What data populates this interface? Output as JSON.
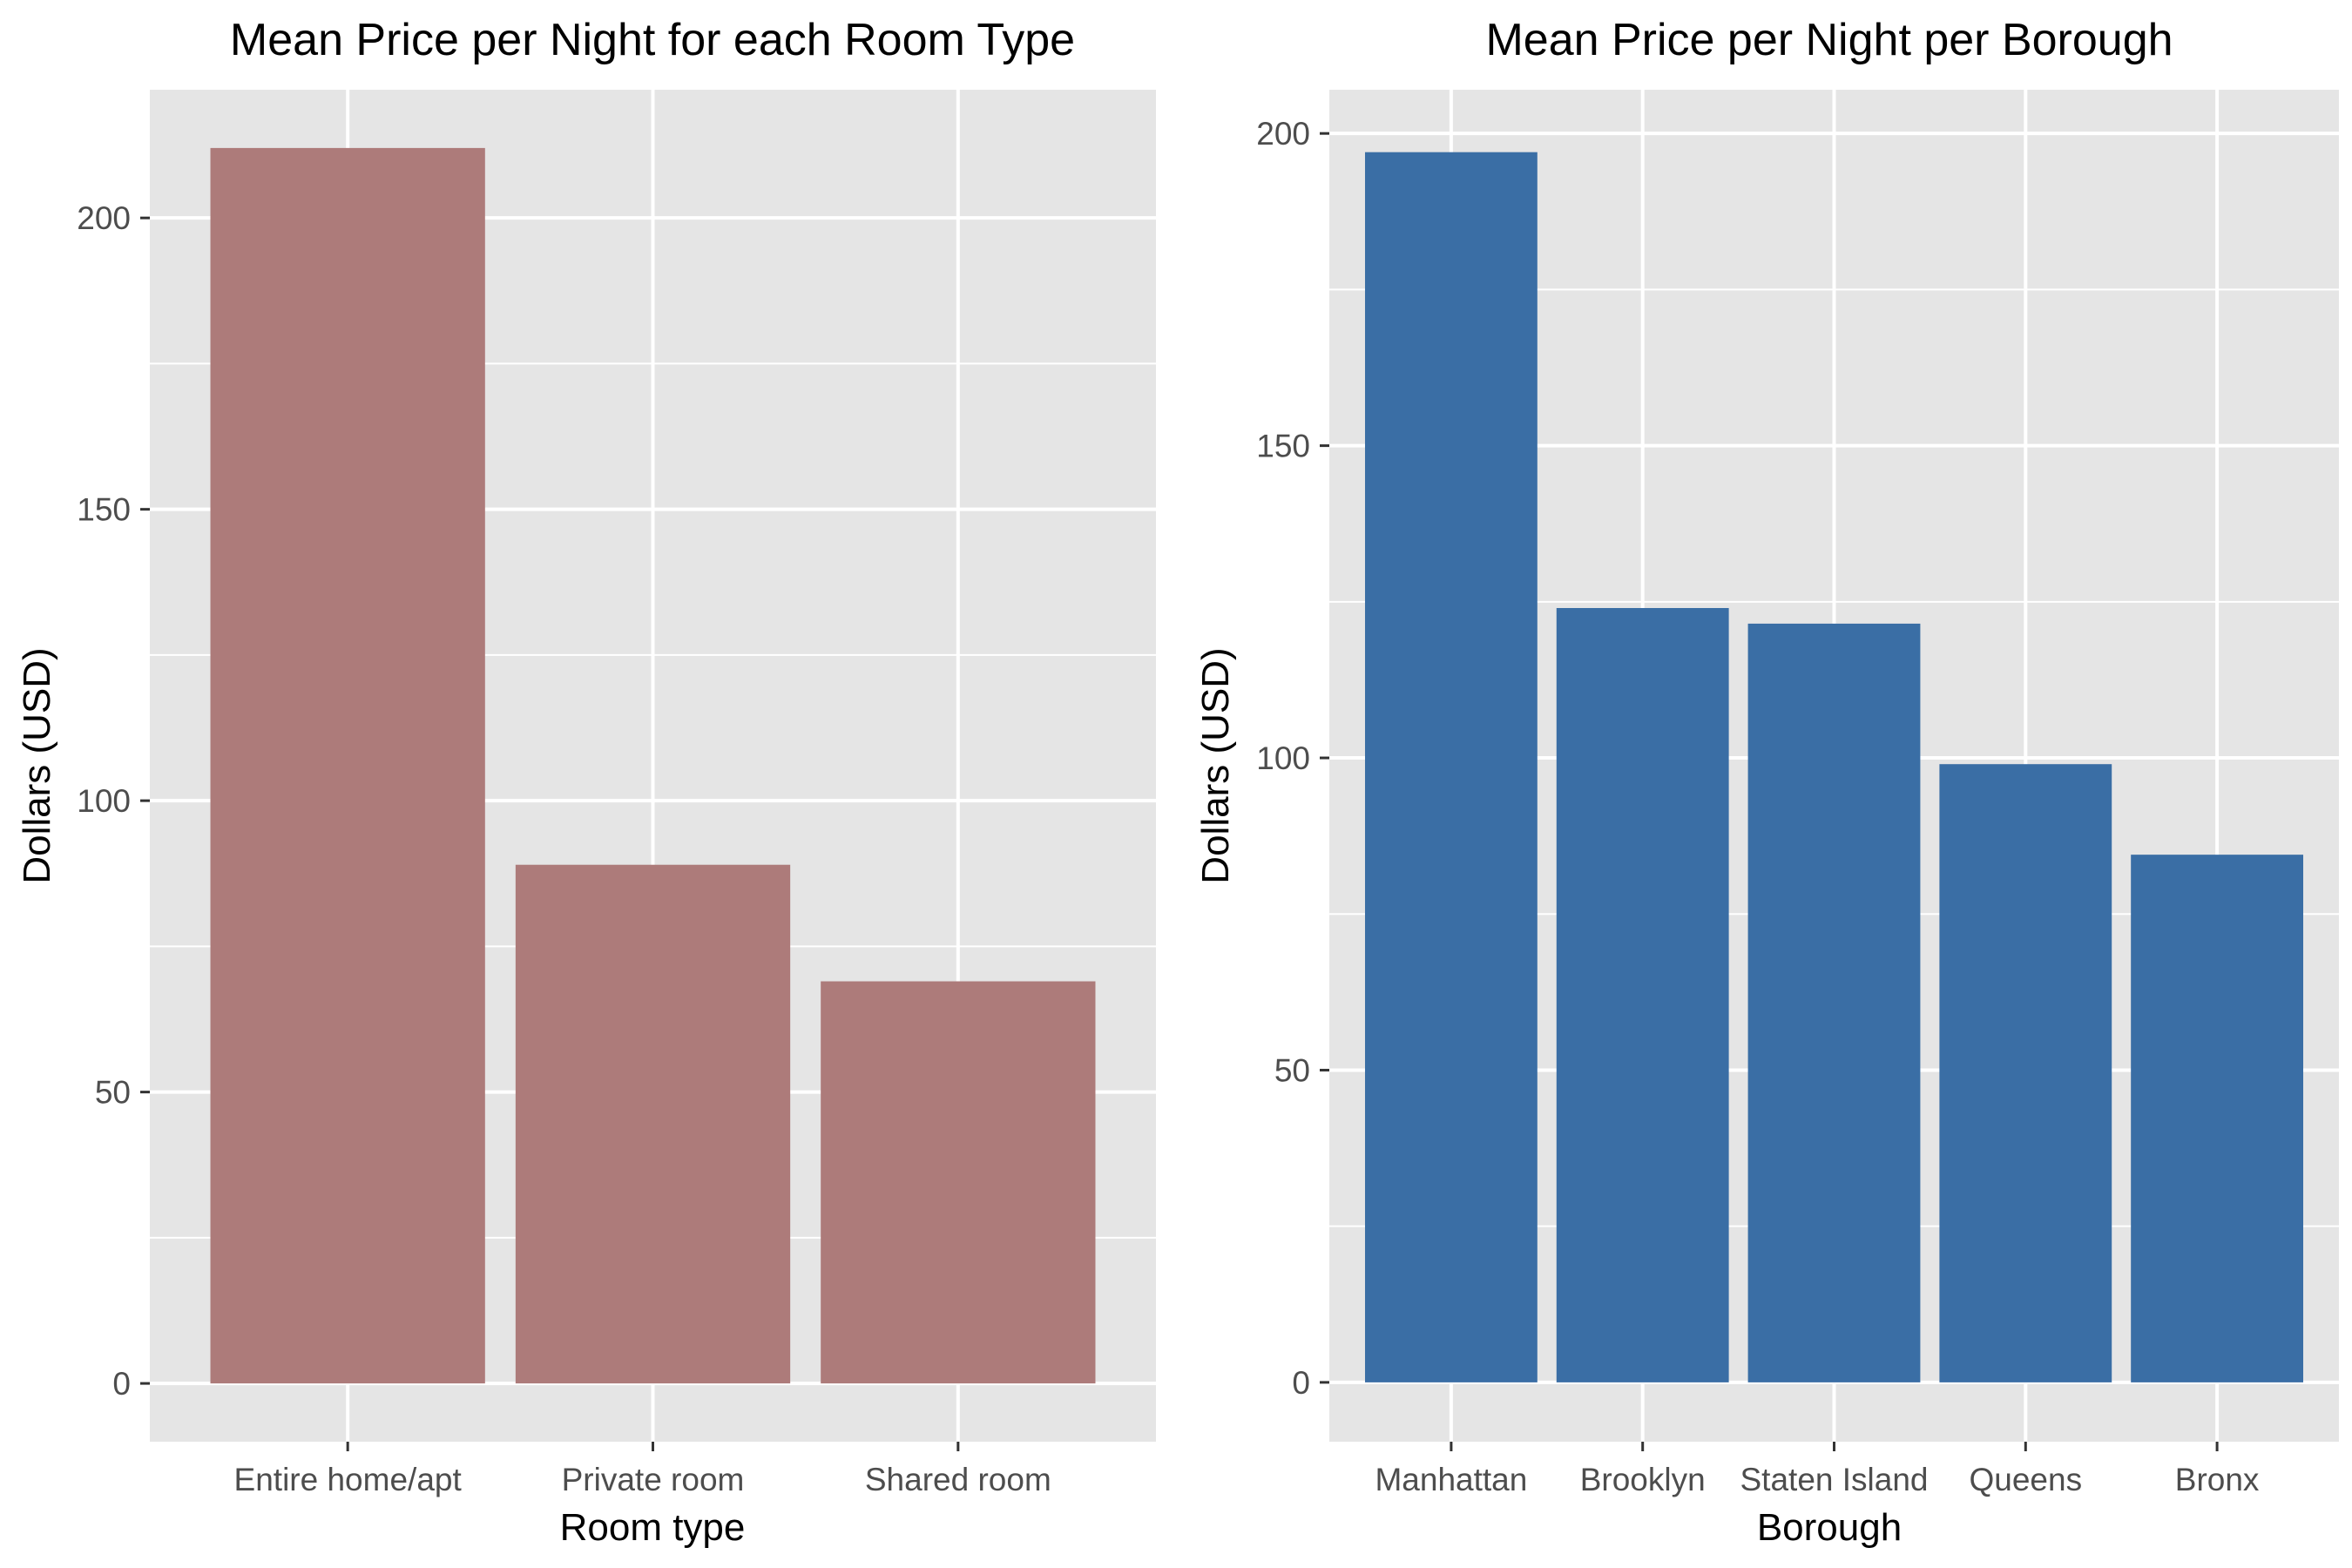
{
  "chart_data": [
    {
      "type": "bar",
      "title": "Mean Price per Night for each Room Type",
      "xlabel": "Room type",
      "ylabel": "Dollars (USD)",
      "categories": [
        "Entire home/apt",
        "Private room",
        "Shared room"
      ],
      "values": [
        212,
        89,
        69
      ],
      "ylim": [
        -10,
        222
      ],
      "yticks": [
        0,
        50,
        100,
        150,
        200
      ],
      "grid": true,
      "legend": "none",
      "bar_color": "#AD7B7A",
      "panel_color": "#E5E5E5"
    },
    {
      "type": "bar",
      "title": "Mean Price per Night per Borough",
      "xlabel": "Borough",
      "ylabel": "Dollars (USD)",
      "categories": [
        "Manhattan",
        "Brooklyn",
        "Staten Island",
        "Queens",
        "Bronx"
      ],
      "values": [
        197,
        124,
        121.5,
        99,
        84.5
      ],
      "ylim": [
        -9.5,
        207
      ],
      "yticks": [
        0,
        50,
        100,
        150,
        200
      ],
      "grid": true,
      "legend": "none",
      "bar_color": "#3A6EA5",
      "panel_color": "#E5E5E5"
    }
  ]
}
